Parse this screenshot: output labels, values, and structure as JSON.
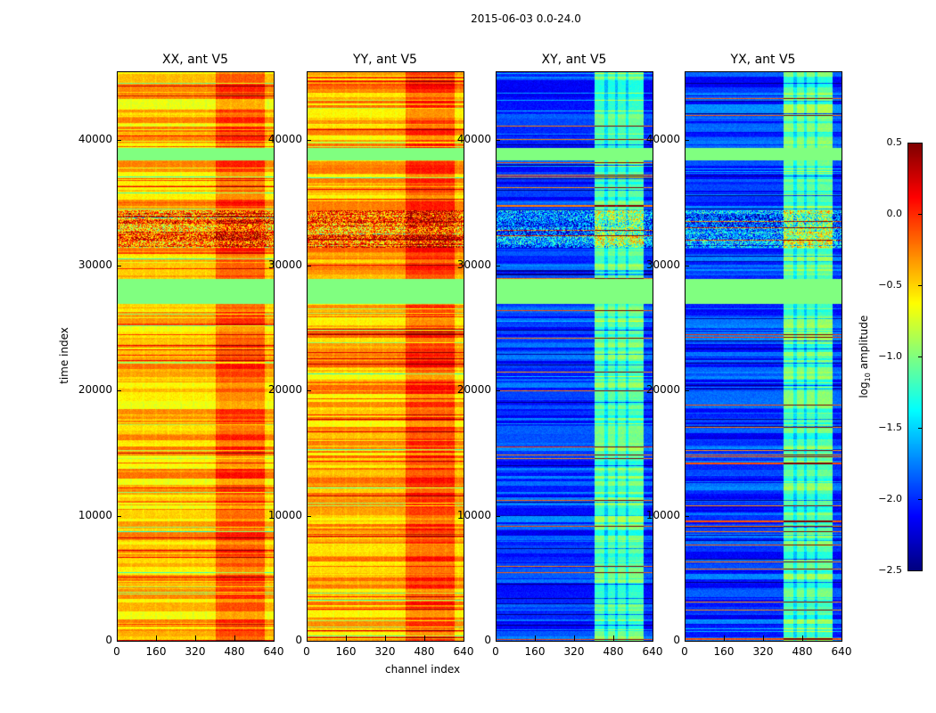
{
  "chart_data": {
    "type": "heatmap",
    "suptitle": "2015-06-03 0.0-24.0",
    "xlabel": "channel index",
    "ylabel": "time index",
    "xlim": [
      0,
      640
    ],
    "ylim": [
      0,
      45500
    ],
    "xticks": [
      "0",
      "160",
      "320",
      "480",
      "640"
    ],
    "yticks": [
      "0",
      "10000",
      "20000",
      "30000",
      "40000"
    ],
    "colorbar": {
      "label_prefix": "log",
      "label_sub": "10",
      "label_suffix": " amplitude",
      "colormap": "jet",
      "range": [
        -2.5,
        0.5
      ],
      "ticks": [
        "0.5",
        "0.0",
        "−0.5",
        "−1.0",
        "−1.5",
        "−2.0",
        "−2.5"
      ]
    },
    "panels": [
      {
        "title": "XX, ant V5",
        "baseline": -0.45,
        "band_channels": [
          400,
          600
        ],
        "band_level": -0.15
      },
      {
        "title": "YY, ant V5",
        "baseline": -0.4,
        "band_channels": [
          400,
          600
        ],
        "band_level": -0.1
      },
      {
        "title": "XY, ant V5",
        "baseline": -1.95,
        "band_channels": [
          400,
          600
        ],
        "band_level": -1.1
      },
      {
        "title": "YX, ant V5",
        "baseline": -1.95,
        "band_channels": [
          400,
          600
        ],
        "band_level": -1.1
      }
    ],
    "flagged_time_range": [
      27000,
      29000
    ],
    "flagged_time_range_2": [
      38500,
      39500
    ],
    "flagged_level": -1.0
  }
}
